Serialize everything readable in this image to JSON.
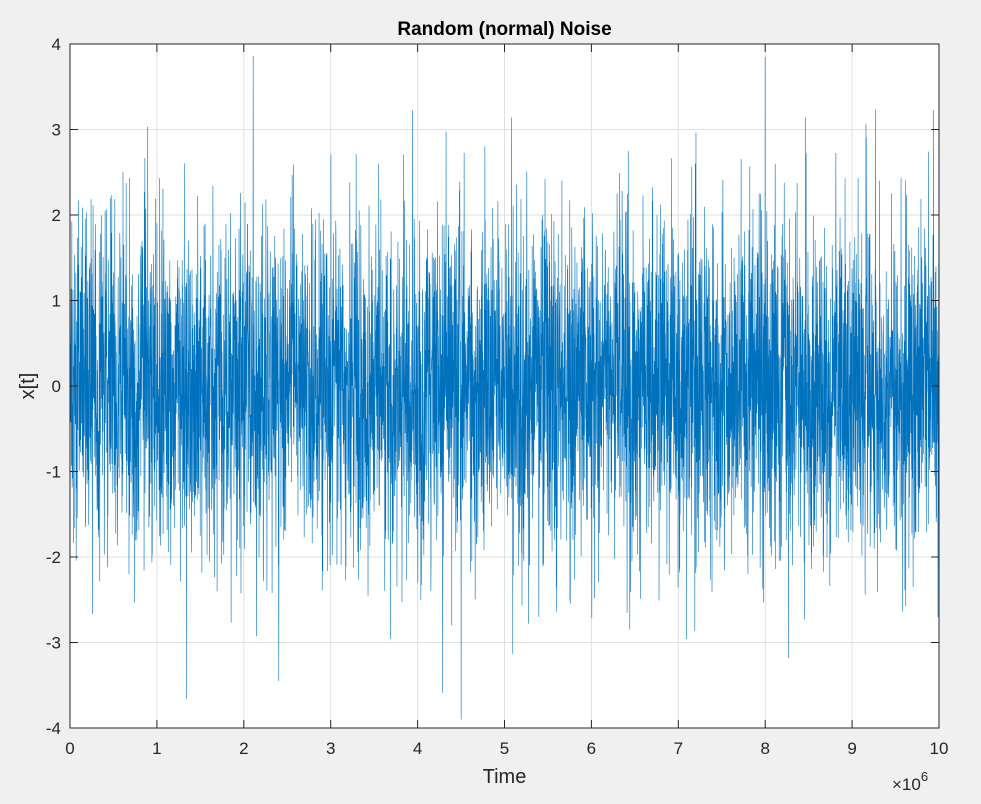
{
  "chart_data": {
    "type": "line",
    "title": "Random (normal) Noise",
    "xlabel": "Time",
    "ylabel": "x[t]",
    "x_range": [
      0,
      10000000
    ],
    "ylim": [
      -4,
      4
    ],
    "x_exponent_label": {
      "base": "×10",
      "power": "6"
    },
    "x_ticks": [
      0,
      1,
      2,
      3,
      4,
      5,
      6,
      7,
      8,
      9,
      10
    ],
    "x_tick_labels": [
      "0",
      "1",
      "2",
      "3",
      "4",
      "5",
      "6",
      "7",
      "8",
      "9",
      "10"
    ],
    "y_ticks": [
      -4,
      -3,
      -2,
      -1,
      0,
      1,
      2,
      3,
      4
    ],
    "y_tick_labels": [
      "-4",
      "-3",
      "-2",
      "-1",
      "0",
      "1",
      "2",
      "3",
      "4"
    ],
    "grid": true,
    "series": [
      {
        "distribution": "normal",
        "mean": 0,
        "std": 1,
        "n_points": 10000000,
        "color": "#0072BD",
        "visible_extremes": {
          "max": {
            "x": 8000000,
            "y": 3.85
          },
          "min": {
            "x": 4500000,
            "y": -3.9
          }
        }
      }
    ]
  },
  "colors": {
    "figure_bg": "#f0f0f0",
    "axes_bg": "#ffffff",
    "grid": "#dfdfdf",
    "axis": "#262626",
    "series": "#0072BD"
  }
}
